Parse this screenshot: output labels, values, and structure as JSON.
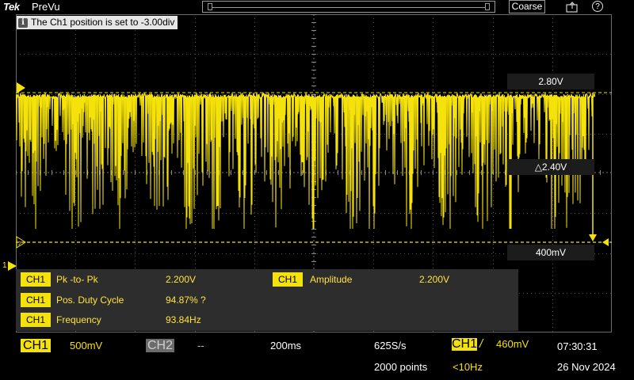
{
  "topbar": {
    "brand": "Tek",
    "run_state": "PreVu",
    "resolution_mode": "Coarse",
    "help_glyph": "?"
  },
  "banner": {
    "icon_glyph": "i",
    "message": "The Ch1 position is set to -3.00div"
  },
  "cursors": {
    "upper_value": "2.80V",
    "delta_value": "△2.40V",
    "lower_value": "400mV"
  },
  "markers": {
    "ch1_ground": "1",
    "ch2_ground": "2"
  },
  "measurements": [
    {
      "channel": "CH1",
      "name": "Pk -to- Pk",
      "value": "2.200V"
    },
    {
      "channel": "CH1",
      "name": "Amplitude",
      "value": "2.200V"
    },
    {
      "channel": "CH1",
      "name": "Pos. Duty Cycle",
      "value": "94.87%  ?"
    },
    {
      "channel": "CH1",
      "name": "Frequency",
      "value": "93.84Hz"
    }
  ],
  "bottom": {
    "ch1_label": "CH1",
    "ch1_scale": "500mV",
    "ch2_label": "CH2",
    "ch2_scale": "--",
    "timebase": "200ms",
    "sample_rate": "625S/s",
    "record_length": "2000 points",
    "trigger_source": "CH1",
    "trigger_slope_glyph": "/",
    "trigger_level": "460mV",
    "trigger_freq": "<10Hz",
    "time": "07:30:31",
    "date": "26 Nov 2024"
  },
  "colors": {
    "ch1": "#f5e20a",
    "grid": "#5a5a5a",
    "panel": "#2d2d2d"
  }
}
